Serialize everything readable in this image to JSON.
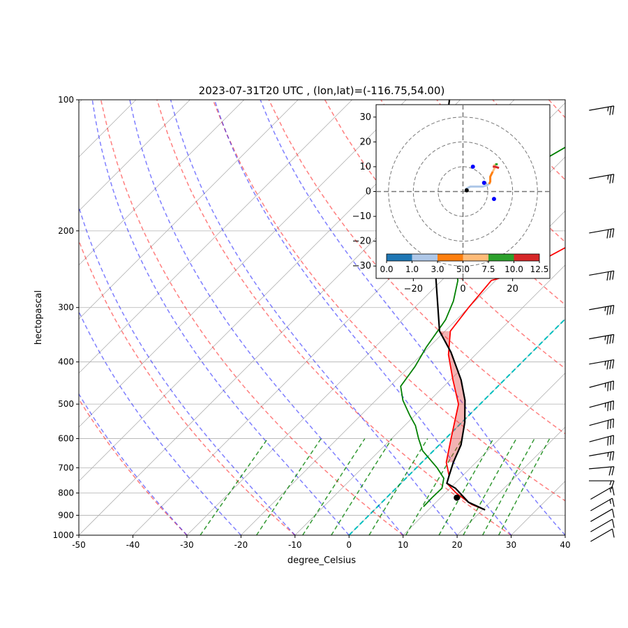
{
  "chart_data": {
    "type": "line",
    "title": "2023-07-31T20 UTC , (lon,lat)=(-116.75,54.00)",
    "xlabel": "degree_Celsius",
    "ylabel": "hectopascal",
    "xlim": [
      -50,
      40
    ],
    "ylim": [
      1000,
      100
    ],
    "y_scale": "log",
    "x_ticks": [
      -50,
      -40,
      -30,
      -20,
      -10,
      0,
      10,
      20,
      30,
      40
    ],
    "y_ticks": [
      100,
      200,
      300,
      400,
      500,
      600,
      700,
      800,
      900,
      1000
    ],
    "grid": true,
    "skew": "skew-T log-p",
    "series": [
      {
        "role": "temperature",
        "color": "#ff0000",
        "points": [
          [
            20.5,
            875
          ],
          [
            17,
            850
          ],
          [
            12,
            800
          ],
          [
            8.5,
            760
          ],
          [
            7.5,
            730
          ],
          [
            4.5,
            680
          ],
          [
            1,
            600
          ],
          [
            -4,
            500
          ],
          [
            -9.5,
            440
          ],
          [
            -15,
            385
          ],
          [
            -19,
            340
          ],
          [
            -20,
            300
          ],
          [
            -20.8,
            260
          ],
          [
            -19,
            255
          ],
          [
            -16,
            240
          ],
          [
            -12,
            210
          ],
          [
            -11,
            200
          ],
          [
            -9,
            175
          ],
          [
            -8,
            150
          ],
          [
            -7.5,
            140
          ],
          [
            -6.5,
            125
          ],
          [
            -5,
            110
          ],
          [
            -4,
            100
          ]
        ]
      },
      {
        "role": "dewpoint",
        "color": "#008000",
        "points": [
          [
            8.5,
            860
          ],
          [
            8.4,
            820
          ],
          [
            8.5,
            780
          ],
          [
            7,
            740
          ],
          [
            3.8,
            700
          ],
          [
            -2,
            640
          ],
          [
            -5,
            600
          ],
          [
            -8,
            560
          ],
          [
            -11,
            530
          ],
          [
            -15,
            490
          ],
          [
            -18,
            455
          ],
          [
            -19,
            410
          ],
          [
            -20.5,
            370
          ],
          [
            -22,
            320
          ],
          [
            -24,
            290
          ],
          [
            -27,
            260
          ],
          [
            -32,
            230
          ],
          [
            -34,
            205
          ],
          [
            -36,
            185
          ],
          [
            -37,
            180
          ],
          [
            -36,
            155
          ],
          [
            -33,
            135
          ],
          [
            -30,
            120
          ],
          [
            -27,
            100
          ]
        ]
      },
      {
        "role": "parcel profile",
        "color": "#000000",
        "points": [
          [
            20.5,
            875
          ],
          [
            16,
            840
          ],
          [
            11,
            780
          ],
          [
            8.5,
            760
          ],
          [
            7.5,
            730
          ],
          [
            5.8,
            680
          ],
          [
            4,
            620
          ],
          [
            0.5,
            550
          ],
          [
            -3.5,
            490
          ],
          [
            -8,
            440
          ],
          [
            -15,
            380
          ],
          [
            -21,
            340
          ],
          [
            -32.5,
            250
          ],
          [
            -42,
            190
          ],
          [
            -50,
            148
          ],
          [
            -62,
            100
          ]
        ]
      },
      {
        "role": "surface point",
        "color": "#000000",
        "points": [
          [
            13,
            820
          ]
        ]
      }
    ],
    "dry_adiabats_color": "#ff0000",
    "moist_adiabats_color": "#0000ff",
    "mixing_ratio_lines_color": "#008000",
    "isotherm_zero_color": "#00bfbf",
    "hodograph": {
      "xlim": [
        -35,
        35
      ],
      "ylim": [
        -35,
        35
      ],
      "x_ticks": [
        -20,
        0,
        20
      ],
      "y_ticks": [
        -30,
        -20,
        -10,
        0,
        10,
        20,
        30
      ],
      "rings": [
        10,
        20,
        30
      ],
      "colorbar_ticks": [
        "0.0",
        "1.0",
        "3.0",
        "5.0",
        "7.5",
        "10.0",
        "12.5"
      ],
      "colorbar_colors": [
        "#1f77b4",
        "#aec7e8",
        "#ff7f0e",
        "#ffbb78",
        "#2ca02c",
        "#d62728"
      ],
      "trace": [
        {
          "u": [
            1,
            2,
            3,
            5,
            8,
            9.5,
            10.5
          ],
          "v": [
            1,
            1.5,
            2,
            2,
            2,
            2.5,
            3
          ],
          "color": "#aec7e8"
        },
        {
          "u": [
            10.5,
            11,
            11,
            11.5,
            12
          ],
          "v": [
            3,
            4,
            6,
            7,
            8
          ],
          "color": "#ff7f0e"
        },
        {
          "u": [
            12,
            12.5,
            13,
            12.5
          ],
          "v": [
            8,
            9,
            10,
            11
          ],
          "color": "#ffbb78"
        },
        {
          "u": [
            13,
            14
          ],
          "v": [
            11,
            11
          ],
          "color": "#2ca02c"
        },
        {
          "u": [
            12,
            13,
            14.5
          ],
          "v": [
            10,
            10,
            9.5
          ],
          "color": "#d62728"
        }
      ],
      "markers": [
        {
          "u": 4,
          "v": 10,
          "color": "#0000ff"
        },
        {
          "u": 8.5,
          "v": 3.5,
          "color": "#0000ff"
        },
        {
          "u": 12.5,
          "v": -3,
          "color": "#0000ff"
        },
        {
          "u": 1.5,
          "v": 0.5,
          "color": "#000000"
        }
      ]
    },
    "wind_barbs": [
      {
        "pressure": 100,
        "speed": 25,
        "dir": 260
      },
      {
        "pressure": 150,
        "speed": 25,
        "dir": 260
      },
      {
        "pressure": 200,
        "speed": 30,
        "dir": 260
      },
      {
        "pressure": 250,
        "speed": 30,
        "dir": 260
      },
      {
        "pressure": 300,
        "speed": 35,
        "dir": 260
      },
      {
        "pressure": 350,
        "speed": 35,
        "dir": 260
      },
      {
        "pressure": 400,
        "speed": 35,
        "dir": 260
      },
      {
        "pressure": 450,
        "speed": 35,
        "dir": 255
      },
      {
        "pressure": 500,
        "speed": 35,
        "dir": 255
      },
      {
        "pressure": 550,
        "speed": 30,
        "dir": 255
      },
      {
        "pressure": 600,
        "speed": 30,
        "dir": 255
      },
      {
        "pressure": 650,
        "speed": 25,
        "dir": 260
      },
      {
        "pressure": 700,
        "speed": 20,
        "dir": 265
      },
      {
        "pressure": 750,
        "speed": 15,
        "dir": 270
      },
      {
        "pressure": 800,
        "speed": 15,
        "dir": 240
      },
      {
        "pressure": 850,
        "speed": 15,
        "dir": 240
      },
      {
        "pressure": 900,
        "speed": 10,
        "dir": 240
      },
      {
        "pressure": 950,
        "speed": 10,
        "dir": 240
      },
      {
        "pressure": 1000,
        "speed": 10,
        "dir": 240
      }
    ]
  }
}
